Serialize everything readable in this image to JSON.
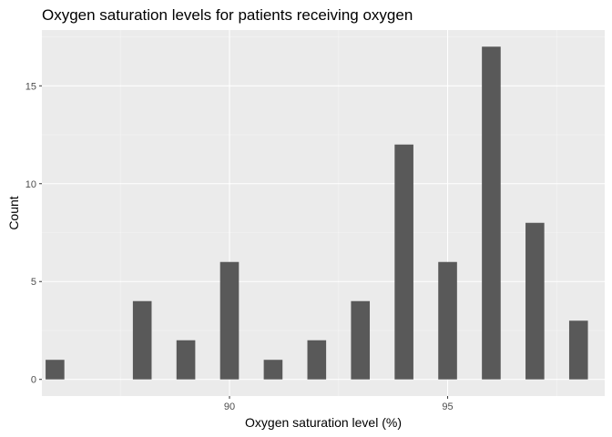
{
  "chart_data": {
    "type": "bar",
    "title": "Oxygen saturation levels for patients receiving oxygen",
    "xlabel": "Oxygen saturation level (%)",
    "ylabel": "Count",
    "x": [
      86,
      88,
      89,
      90,
      91,
      92,
      93,
      94,
      95,
      96,
      97,
      98
    ],
    "values": [
      1,
      4,
      2,
      6,
      1,
      2,
      4,
      12,
      6,
      17,
      8,
      3
    ],
    "xlim": [
      85.7,
      98.6
    ],
    "ylim": [
      -0.85,
      17.85
    ],
    "x_ticks": [
      90,
      95
    ],
    "y_ticks": [
      0,
      5,
      10,
      15
    ],
    "grid": true,
    "bar_color": "#595959",
    "panel_color": "#ebebeb"
  }
}
